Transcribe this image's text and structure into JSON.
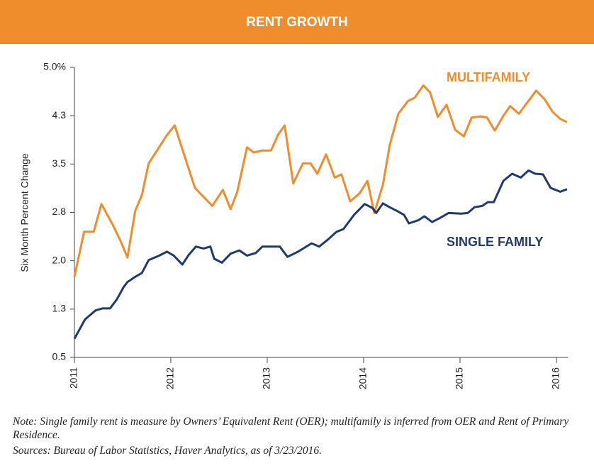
{
  "chart_data": {
    "type": "line",
    "title": "RENT GROWTH",
    "y_label": "Six Month Percent Change",
    "xlim": [
      2011,
      2016.12
    ],
    "xticks": [
      2011,
      2012,
      2013,
      2014,
      2015,
      2016
    ],
    "ylim": [
      0.5,
      5.0
    ],
    "yticks": [
      0.5,
      {
        "value": 1.25,
        "label": "1.3"
      },
      {
        "value": 2.0,
        "label": "2.0"
      },
      {
        "value": 2.75,
        "label": "2.8"
      },
      3.5,
      {
        "value": 4.25,
        "label": "4.3"
      },
      {
        "value": 5.0,
        "label": "5.0%"
      }
    ],
    "series": [
      {
        "name": "MULTIFAMILY",
        "color": "#ef8c2b",
        "x": [
          2011.0,
          2011.1,
          2011.2,
          2011.28,
          2011.4,
          2011.48,
          2011.55,
          2011.63,
          2011.7,
          2011.77,
          2011.96,
          2012.04,
          2012.13,
          2012.25,
          2012.36,
          2012.43,
          2012.54,
          2012.62,
          2012.69,
          2012.79,
          2012.86,
          2012.95,
          2013.04,
          2013.11,
          2013.18,
          2013.27,
          2013.37,
          2013.45,
          2013.52,
          2013.61,
          2013.7,
          2013.77,
          2013.86,
          2013.96,
          2014.04,
          2014.11,
          2014.2,
          2014.27,
          2014.36,
          2014.46,
          2014.53,
          2014.62,
          2014.69,
          2014.77,
          2014.86,
          2014.95,
          2015.04,
          2015.12,
          2015.21,
          2015.28,
          2015.36,
          2015.45,
          2015.52,
          2015.61,
          2015.71,
          2015.79,
          2015.88,
          2015.96,
          2016.04,
          2016.11
        ],
        "values": [
          1.75,
          2.45,
          2.45,
          2.88,
          2.55,
          2.3,
          2.05,
          2.77,
          3.02,
          3.51,
          3.95,
          4.1,
          3.68,
          3.13,
          2.96,
          2.85,
          3.1,
          2.8,
          3.07,
          3.76,
          3.68,
          3.71,
          3.71,
          3.95,
          4.1,
          3.2,
          3.51,
          3.51,
          3.35,
          3.65,
          3.29,
          3.34,
          2.92,
          3.05,
          3.24,
          2.74,
          3.18,
          3.79,
          4.28,
          4.48,
          4.53,
          4.72,
          4.61,
          4.23,
          4.42,
          4.03,
          3.93,
          4.22,
          4.24,
          4.22,
          4.02,
          4.25,
          4.4,
          4.28,
          4.48,
          4.64,
          4.5,
          4.31,
          4.2,
          4.15
        ]
      },
      {
        "name": "SINGLE FAMILY",
        "color": "#1f3a6e",
        "x": [
          2011.0,
          2011.11,
          2011.22,
          2011.29,
          2011.37,
          2011.44,
          2011.51,
          2011.55,
          2011.63,
          2011.7,
          2011.77,
          2011.88,
          2011.96,
          2012.03,
          2012.12,
          2012.18,
          2012.26,
          2012.34,
          2012.41,
          2012.45,
          2012.53,
          2012.62,
          2012.71,
          2012.79,
          2012.88,
          2012.95,
          2013.06,
          2013.13,
          2013.21,
          2013.32,
          2013.46,
          2013.54,
          2013.63,
          2013.72,
          2013.79,
          2013.9,
          2014.01,
          2014.09,
          2014.13,
          2014.2,
          2014.27,
          2014.35,
          2014.42,
          2014.47,
          2014.57,
          2014.63,
          2014.71,
          2014.8,
          2014.88,
          2015.01,
          2015.08,
          2015.15,
          2015.23,
          2015.29,
          2015.35,
          2015.45,
          2015.54,
          2015.63,
          2015.71,
          2015.78,
          2015.86,
          2015.94,
          2016.04,
          2016.11
        ],
        "values": [
          0.79,
          1.09,
          1.23,
          1.26,
          1.26,
          1.4,
          1.59,
          1.67,
          1.75,
          1.81,
          2.01,
          2.08,
          2.14,
          2.08,
          1.94,
          2.08,
          2.22,
          2.19,
          2.22,
          2.03,
          1.97,
          2.11,
          2.16,
          2.08,
          2.12,
          2.22,
          2.22,
          2.22,
          2.06,
          2.14,
          2.27,
          2.22,
          2.33,
          2.45,
          2.49,
          2.71,
          2.88,
          2.82,
          2.74,
          2.89,
          2.83,
          2.77,
          2.71,
          2.58,
          2.63,
          2.69,
          2.6,
          2.67,
          2.74,
          2.73,
          2.74,
          2.83,
          2.85,
          2.91,
          2.91,
          3.24,
          3.35,
          3.29,
          3.4,
          3.35,
          3.34,
          3.13,
          3.07,
          3.11
        ]
      }
    ]
  },
  "notes": [
    "Note: Single family rent is measure by Owners’ Equivalent Rent (OER); multifamily is inferred from OER and Rent of Primary Residence.",
    "Sources: Bureau of Labor Statistics, Haver Analytics, as of 3/23/2016."
  ]
}
